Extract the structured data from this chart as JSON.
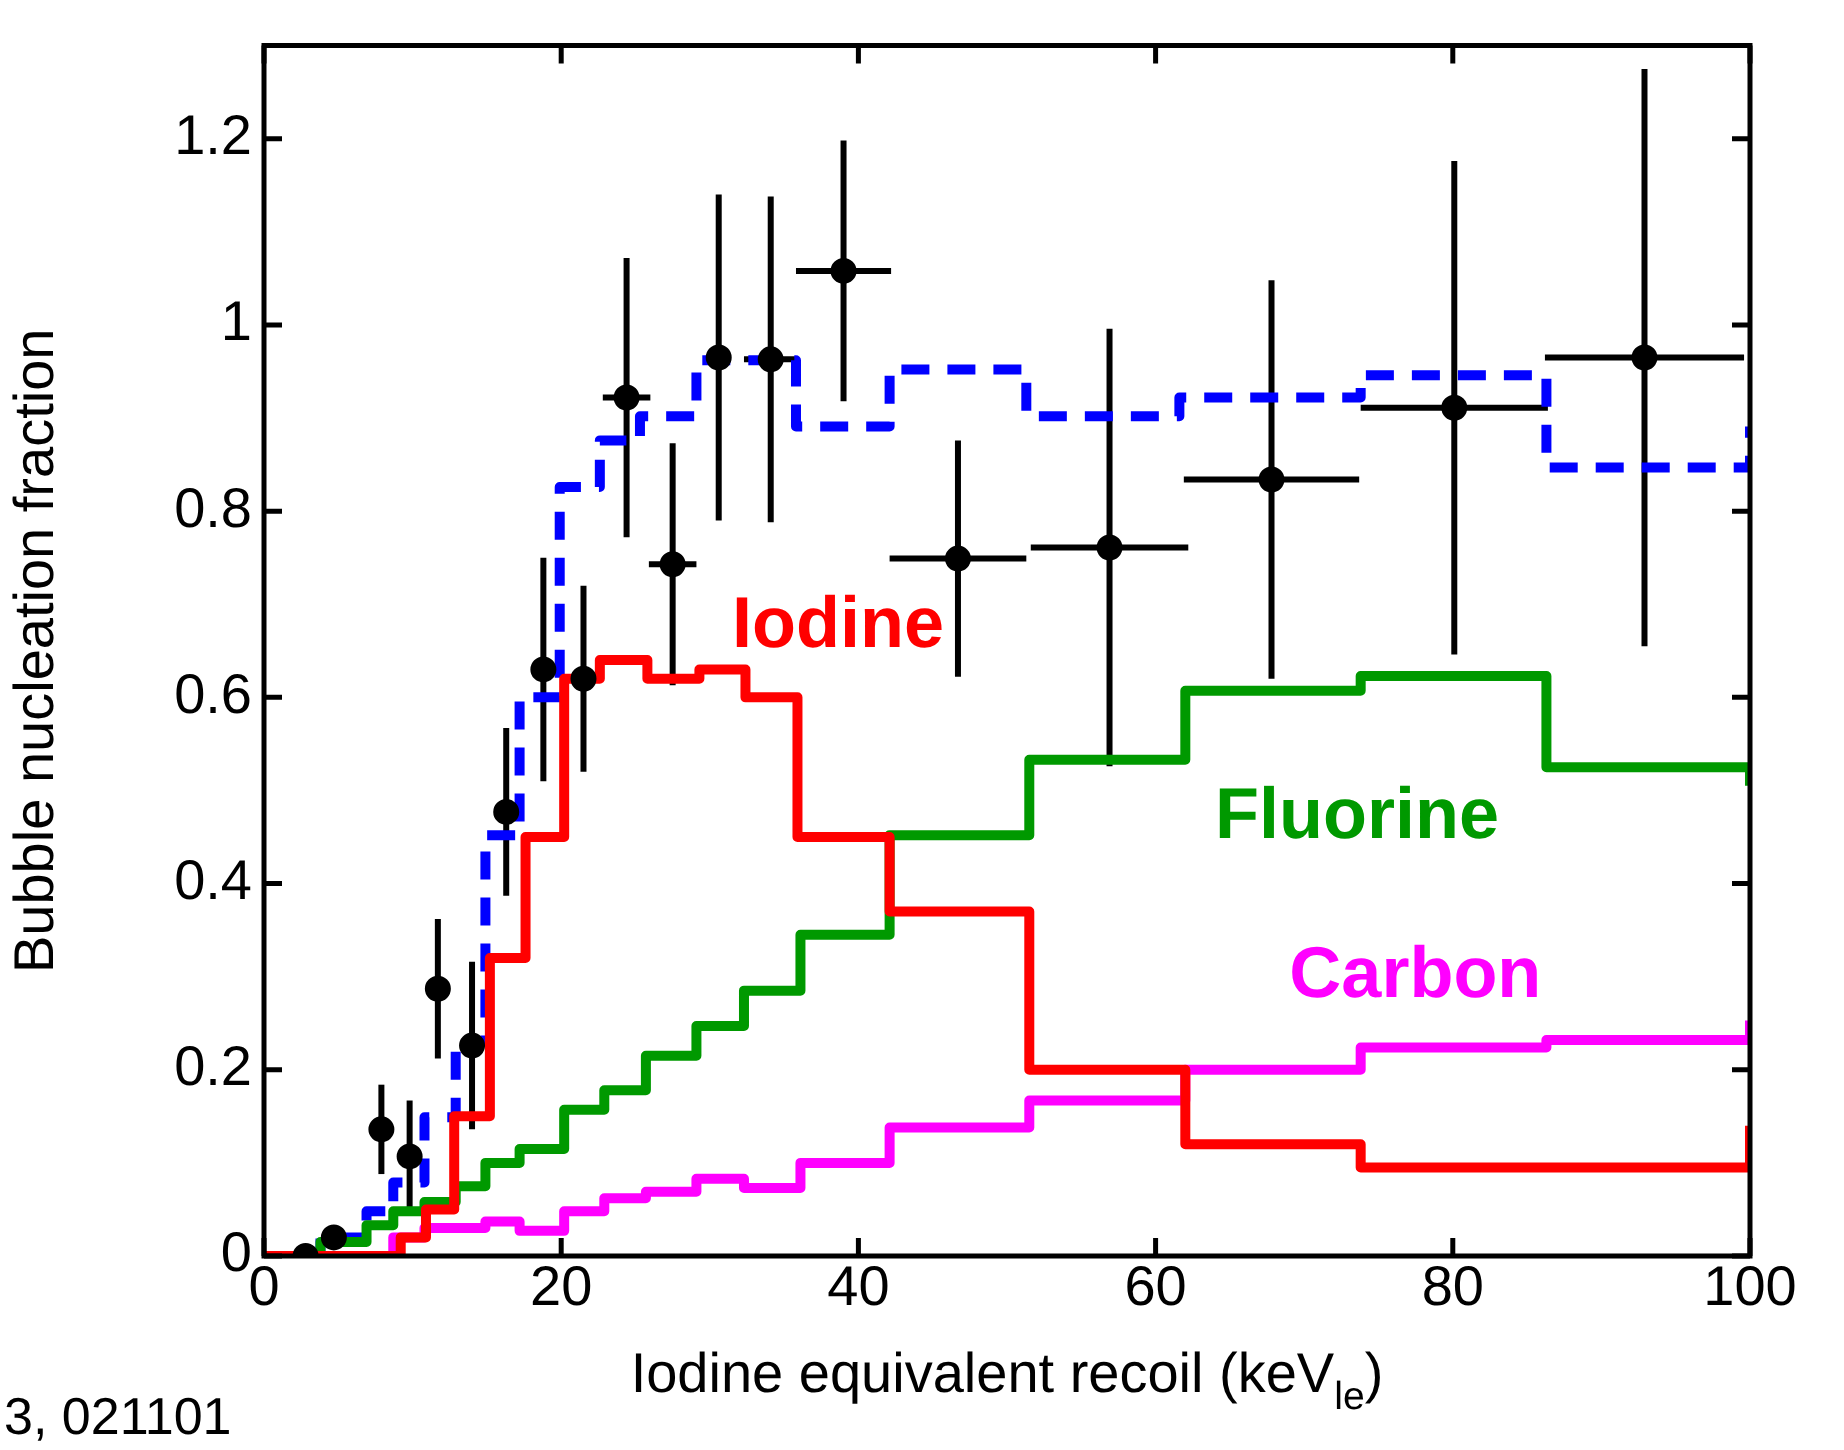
{
  "chart_data": {
    "type": "step",
    "xlabel": "Iodine equivalent recoil (keV$_{le}$)",
    "ylabel": "Bubble nucleation fraction",
    "annotations": [
      "3, 021101"
    ],
    "xlim": [
      0,
      100
    ],
    "xticks": [
      0,
      20,
      40,
      60,
      80,
      100
    ],
    "ylim": [
      0,
      1.3
    ],
    "yticks": [
      0,
      0.2,
      0.4,
      0.6,
      0.8,
      1,
      1.2
    ],
    "grid": false,
    "legend": false,
    "series": [
      {
        "name": "Iodine",
        "color": "#ff0000",
        "x": [
          0,
          9.2,
          10.9,
          12.8,
          15.2,
          17.6,
          20.2,
          22.6,
          25.8,
          29.3,
          32.4,
          35.9,
          42.1,
          51.5,
          62,
          73.8,
          100
        ],
        "values": [
          0,
          0.02,
          0.05,
          0.15,
          0.32,
          0.45,
          0.62,
          0.64,
          0.62,
          0.63,
          0.6,
          0.45,
          0.37,
          0.2,
          0.12,
          0.095,
          0.14
        ]
      },
      {
        "name": "Fluorine",
        "color": "#009900",
        "x": [
          0,
          3.8,
          6.9,
          8.7,
          10.8,
          12.9,
          14.9,
          17.2,
          20.2,
          22.9,
          25.7,
          29.1,
          32.3,
          36.1,
          42.1,
          51.5,
          62,
          73.8,
          86.3,
          100
        ],
        "values": [
          0,
          0.015,
          0.033,
          0.048,
          0.058,
          0.075,
          0.1,
          0.115,
          0.157,
          0.178,
          0.215,
          0.247,
          0.285,
          0.345,
          0.452,
          0.533,
          0.607,
          0.623,
          0.525,
          0.505
        ]
      },
      {
        "name": "Carbon",
        "color": "#ff00ff",
        "x": [
          0,
          8.7,
          10.8,
          14.9,
          17.2,
          20.2,
          22.9,
          25.7,
          29.1,
          32.3,
          36.1,
          42.1,
          51.5,
          62,
          73.8,
          86.3,
          100
        ],
        "values": [
          0,
          0.02,
          0.03,
          0.037,
          0.027,
          0.048,
          0.062,
          0.069,
          0.083,
          0.073,
          0.1,
          0.138,
          0.167,
          0.2,
          0.224,
          0.232,
          0.253
        ]
      },
      {
        "color": "#0000ff",
        "line_style": "dashed",
        "x": [
          0,
          3.8,
          6.9,
          8.7,
          10.8,
          12.9,
          14.9,
          17.2,
          19.9,
          22.6,
          25.3,
          29.1,
          35.8,
          42.1,
          51.3,
          61.6,
          73.8,
          86.3,
          100
        ],
        "values": [
          0,
          0.02,
          0.048,
          0.079,
          0.149,
          0.23,
          0.452,
          0.6,
          0.826,
          0.876,
          0.902,
          0.962,
          0.891,
          0.952,
          0.902,
          0.922,
          0.946,
          0.847,
          0.891
        ]
      },
      {
        "type": "scatter",
        "color": "#000000",
        "marker": "circle",
        "x": [
          2.8,
          4.7,
          7.9,
          9.8,
          11.7,
          14,
          16.3,
          18.8,
          21.5,
          24.4,
          27.5,
          30.6,
          34.1,
          39,
          46.7,
          56.9,
          67.8,
          80.1,
          92.9
        ],
        "values": [
          0,
          0.02,
          0.136,
          0.107,
          0.287,
          0.226,
          0.477,
          0.63,
          0.62,
          0.922,
          0.743,
          0.965,
          0.963,
          1.058,
          0.749,
          0.761,
          0.834,
          0.911,
          0.965
        ],
        "errors": [
          null,
          null,
          0.048,
          0.06,
          0.075,
          0.09,
          0.09,
          0.12,
          0.1,
          0.15,
          0.13,
          0.175,
          0.175,
          0.14,
          0.127,
          0.235,
          0.214,
          0.265,
          0.31
        ],
        "xerrors": [
          null,
          null,
          null,
          null,
          null,
          null,
          0.7,
          null,
          null,
          1.6,
          1.6,
          null,
          1.8,
          3.2,
          4.6,
          5.3,
          5.9,
          6.3,
          6.7
        ]
      }
    ]
  }
}
